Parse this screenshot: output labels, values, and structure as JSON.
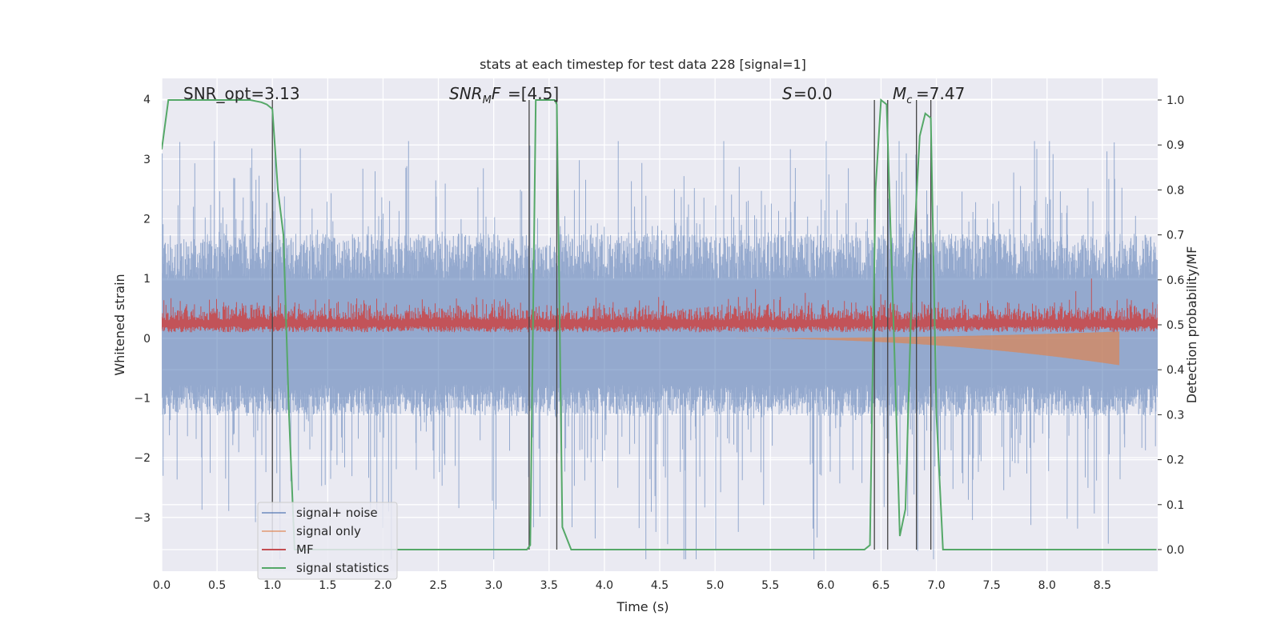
{
  "chart_data": {
    "type": "line",
    "title": "stats at each timestep for test data 228 [signal=1]",
    "xlabel": "Time (s)",
    "ylabel_left": "Whitened strain",
    "ylabel_right": "Detection probability/MF",
    "xlim": [
      0.0,
      9.0
    ],
    "ylim_left": [
      -3.9,
      4.35
    ],
    "ylim_right": [
      0.0,
      1.0
    ],
    "x_ticks": [
      "0.0",
      "0.5",
      "1.0",
      "1.5",
      "2.0",
      "2.5",
      "3.0",
      "3.5",
      "4.0",
      "4.5",
      "5.0",
      "5.5",
      "6.0",
      "6.5",
      "7.0",
      "7.5",
      "8.0",
      "8.5"
    ],
    "y_ticks_left": [
      "4",
      "3",
      "2",
      "1",
      "0",
      "−1",
      "−2",
      "−3"
    ],
    "y_ticks_right": [
      "1.0",
      "0.9",
      "0.8",
      "0.7",
      "0.6",
      "0.5",
      "0.4",
      "0.3",
      "0.2",
      "0.1",
      "0.0"
    ],
    "grid": true,
    "legend_position": "lower-left",
    "annotations": {
      "snr_opt": "SNR_opt=3.13",
      "snr_mf": "=[4.5]",
      "s": "=0.0",
      "mc": "=7.47"
    },
    "series": [
      {
        "name": "signal+ noise",
        "axis": "left",
        "color": "#4c72b0",
        "style": "dense noise band",
        "core_range": [
          -1.3,
          1.75
        ],
        "spike_range": [
          -3.7,
          3.3
        ]
      },
      {
        "name": "signal only",
        "axis": "left",
        "color": "#dd8452",
        "style": "chirp growing toward merger",
        "x_start": 5.0,
        "x_end": 8.65,
        "peak_amplitude": 0.45
      },
      {
        "name": "MF",
        "axis": "left",
        "color": "#c44e52",
        "style": "noise around baseline",
        "baseline": 0.2,
        "range": [
          0.1,
          1.0
        ]
      },
      {
        "name": "signal statistics",
        "axis": "right",
        "color": "#55a868",
        "x": [
          0.0,
          0.06,
          0.1,
          0.2,
          0.4,
          0.6,
          0.8,
          0.9,
          0.95,
          1.0,
          1.05,
          1.1,
          1.15,
          1.2,
          1.3,
          3.0,
          3.3,
          3.33,
          3.38,
          3.42,
          3.5,
          3.55,
          3.57,
          3.62,
          3.7,
          6.35,
          6.4,
          6.45,
          6.5,
          6.55,
          6.62,
          6.67,
          6.72,
          6.78,
          6.85,
          6.9,
          6.95,
          7.0,
          7.06,
          8.99
        ],
        "y": [
          0.89,
          1.0,
          1.0,
          1.0,
          1.0,
          1.0,
          1.0,
          0.995,
          0.99,
          0.98,
          0.8,
          0.7,
          0.3,
          0.0,
          0.0,
          0.0,
          0.0,
          0.01,
          1.0,
          1.0,
          1.0,
          1.0,
          0.99,
          0.05,
          0.0,
          0.0,
          0.01,
          0.8,
          1.0,
          0.99,
          0.45,
          0.03,
          0.09,
          0.6,
          0.92,
          0.97,
          0.96,
          0.3,
          0.0,
          0.0
        ]
      }
    ],
    "vertical_lines": [
      1.0,
      3.32,
      3.57,
      6.44,
      6.56,
      6.82,
      6.95
    ]
  }
}
